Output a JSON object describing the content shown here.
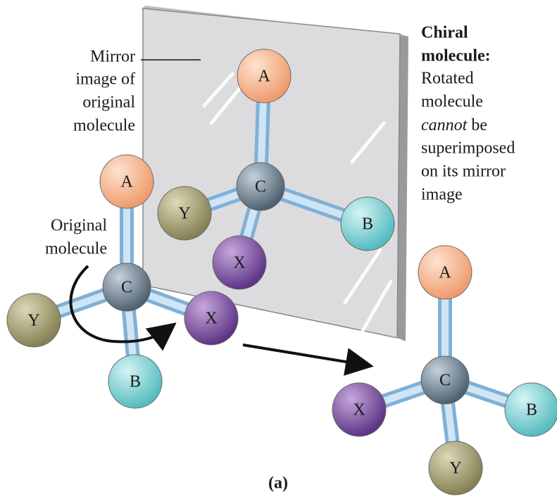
{
  "mirror_caption": [
    "Mirror",
    "image of",
    "original",
    "molecule"
  ],
  "original_caption": [
    "Original",
    "molecule"
  ],
  "chiral_caption": {
    "heading": [
      "Chiral",
      "molecule:"
    ],
    "lines": [
      "Rotated",
      "molecule"
    ],
    "emphasis": {
      "italic": "cannot",
      "rest": "be"
    },
    "after": [
      "superimposed",
      "on its mirror",
      "image"
    ]
  },
  "panel_label": "(a)",
  "molecules": [
    {
      "atoms": [
        "A",
        "C",
        "Y",
        "B",
        "X"
      ]
    },
    {
      "atoms": [
        "A",
        "C",
        "Y",
        "B",
        "X"
      ]
    },
    {
      "atoms": [
        "A",
        "C",
        "X",
        "B",
        "Y"
      ]
    }
  ]
}
